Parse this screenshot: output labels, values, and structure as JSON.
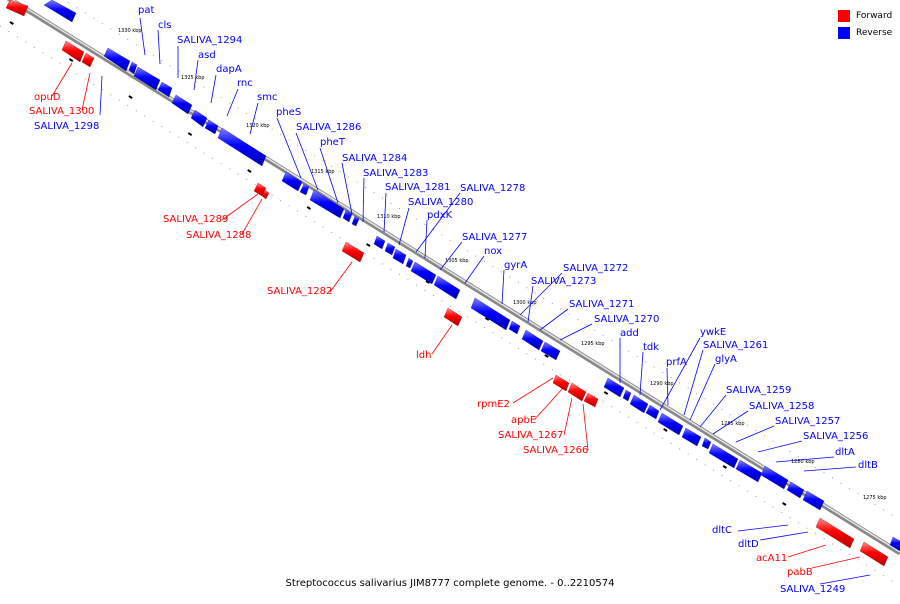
{
  "legend": {
    "forward": {
      "label": "Forward",
      "color": "#ff0000"
    },
    "reverse": {
      "label": "Reverse",
      "color": "#0000ff"
    }
  },
  "caption": "Streptococcus salivarius JIM8777 complete genome. - 0..2210574",
  "tick_labels": [
    "1330 kbp",
    "1325 kbp",
    "1320 kbp",
    "1315 kbp",
    "1310 kbp",
    "1305 kbp",
    "1300 kbp",
    "1295 kbp",
    "1290 kbp",
    "1285 kbp",
    "1280 kbp",
    "1275 kbp"
  ],
  "genes_reverse": [
    "pat",
    "cls",
    "SALIVA_1294",
    "asd",
    "dapA",
    "rnc",
    "smc",
    "pheS",
    "SALIVA_1286",
    "pheT",
    "SALIVA_1284",
    "SALIVA_1283",
    "SALIVA_1281",
    "SALIVA_1280",
    "SALIVA_1278",
    "pdxK",
    "SALIVA_1277",
    "nox",
    "gyrA",
    "SALIVA_1272",
    "SALIVA_1273",
    "SALIVA_1271",
    "SALIVA_1270",
    "add",
    "tdk",
    "ywkE",
    "prfA",
    "SALIVA_1261",
    "glyA",
    "SALIVA_1259",
    "SALIVA_1258",
    "SALIVA_1257",
    "SALIVA_1256",
    "dltA",
    "dltB",
    "SALIVA_1298",
    "dltC",
    "dltD",
    "SALIVA_1249"
  ],
  "genes_forward": [
    "opuD",
    "SALIVA_1300",
    "SALIVA_1289",
    "SALIVA_1288",
    "SALIVA_1282",
    "ldh",
    "rpmE2",
    "apbE",
    "SALIVA_1267",
    "SALIVA_1266",
    "acA11",
    "pabB"
  ]
}
